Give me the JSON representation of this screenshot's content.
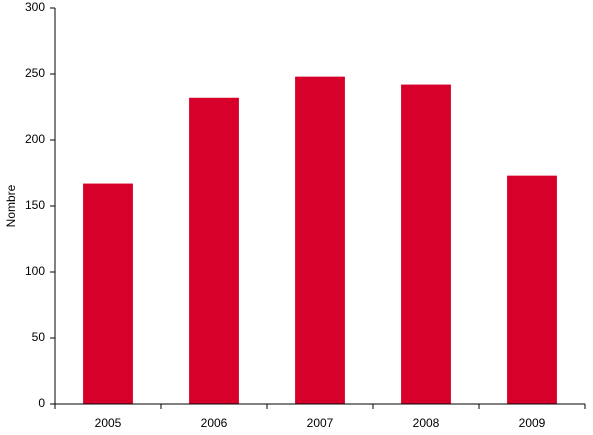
{
  "chart_data": {
    "type": "bar",
    "y_label": "Nombre",
    "categories": [
      "2005",
      "2006",
      "2007",
      "2008",
      "2009"
    ],
    "values": [
      167,
      232,
      248,
      242,
      173
    ],
    "color": "#d7002b",
    "ylim": [
      0,
      300
    ],
    "yticks": [
      0,
      50,
      100,
      150,
      200,
      250,
      300
    ],
    "grid": false
  }
}
